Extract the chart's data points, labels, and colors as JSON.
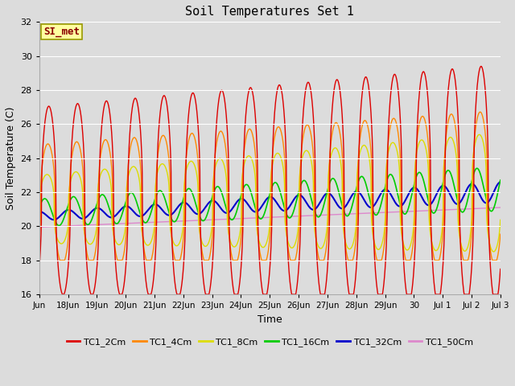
{
  "title": "Soil Temperatures Set 1",
  "xlabel": "Time",
  "ylabel": "Soil Temperature (C)",
  "ylim": [
    16,
    32
  ],
  "yticks": [
    16,
    18,
    20,
    22,
    24,
    26,
    28,
    30,
    32
  ],
  "fig_bg": "#dcdcdc",
  "plot_bg": "#dcdcdc",
  "grid_color": "white",
  "annotation_text": "SI_met",
  "annotation_color": "#8b0000",
  "annotation_bg": "#ffffa0",
  "annotation_edge": "#999900",
  "series_colors": {
    "TC1_2Cm": "#dd0000",
    "TC1_4Cm": "#ff8800",
    "TC1_8Cm": "#dddd00",
    "TC1_16Cm": "#00cc00",
    "TC1_32Cm": "#0000cc",
    "TC1_50Cm": "#dd88cc"
  },
  "xtick_labels": [
    "Jun",
    "18Jun",
    "19Jun",
    "20Jun",
    "21Jun",
    "22Jun",
    "23Jun",
    "24Jun",
    "25Jun",
    "26Jun",
    "27Jun",
    "28Jun",
    "29Jun",
    "30",
    "Jul 1",
    "Jul 2",
    "Jul 3"
  ],
  "xtick_positions": [
    0,
    1,
    2,
    3,
    4,
    5,
    6,
    7,
    8,
    9,
    10,
    11,
    12,
    13,
    14,
    15,
    16
  ]
}
